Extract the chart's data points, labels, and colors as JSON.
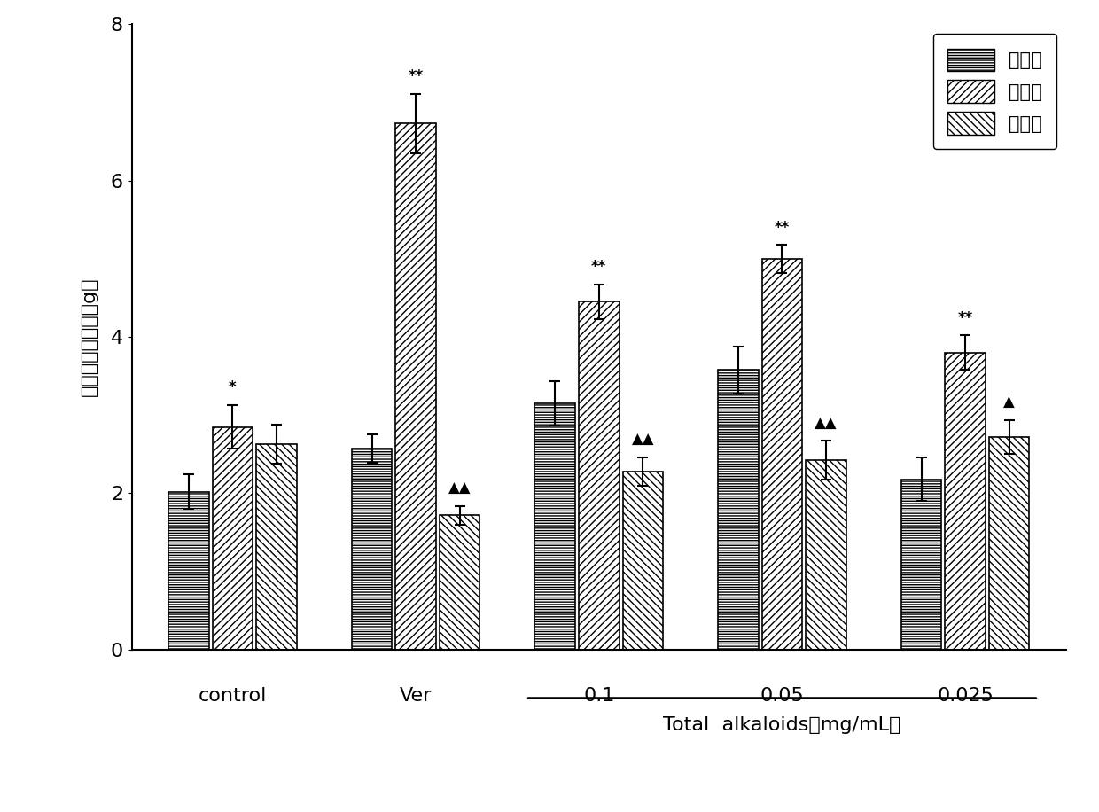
{
  "groups": [
    "control",
    "Ver",
    "0.1",
    "0.05",
    "0.025"
  ],
  "series_labels": [
    "造模前",
    "造模后",
    "给药后"
  ],
  "values": [
    [
      2.02,
      2.85,
      2.63
    ],
    [
      2.57,
      6.73,
      1.72
    ],
    [
      3.15,
      4.45,
      2.28
    ],
    [
      3.58,
      5.0,
      2.42
    ],
    [
      2.18,
      3.8,
      2.72
    ]
  ],
  "errors": [
    [
      0.22,
      0.28,
      0.25
    ],
    [
      0.18,
      0.38,
      0.12
    ],
    [
      0.28,
      0.22,
      0.18
    ],
    [
      0.3,
      0.18,
      0.25
    ],
    [
      0.28,
      0.22,
      0.22
    ]
  ],
  "annotations": [
    [
      "",
      "*",
      ""
    ],
    [
      "",
      "**",
      "▲▲"
    ],
    [
      "",
      "**",
      "▲▲"
    ],
    [
      "",
      "**",
      "▲▲"
    ],
    [
      "",
      "**",
      "▲"
    ]
  ],
  "xlabel": "Total  alkaloids（mg/mL）",
  "ylabel": "收缩张力平均値（g）",
  "ylim": [
    0,
    8
  ],
  "yticks": [
    0,
    2,
    4,
    6,
    8
  ],
  "bar_width": 0.22,
  "underlined_groups": [
    "0.1",
    "0.05",
    "0.025"
  ]
}
